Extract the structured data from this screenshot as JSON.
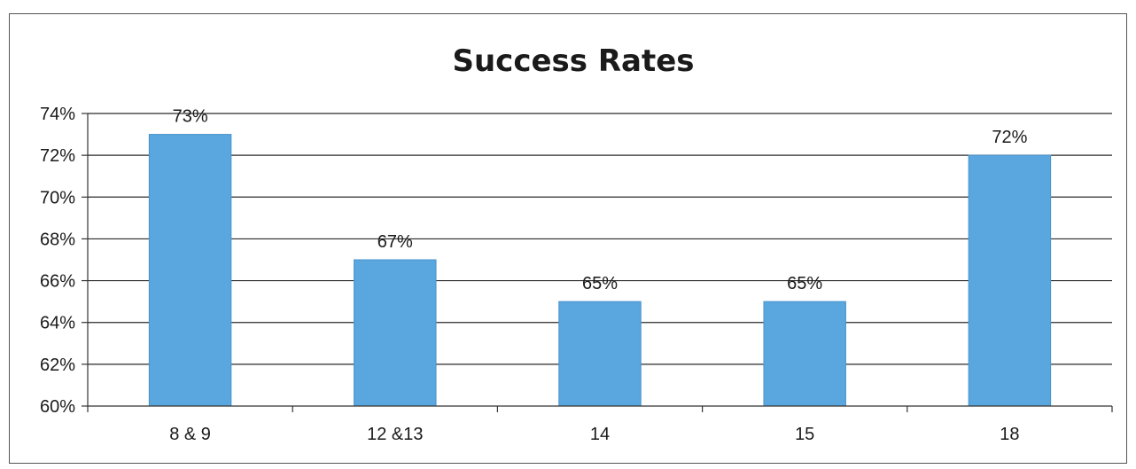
{
  "chart_data": {
    "type": "bar",
    "title": "Success Rates",
    "xlabel": "",
    "ylabel": "",
    "categories": [
      "8 & 9",
      "12 &13",
      "14",
      "15",
      "18"
    ],
    "values": [
      73,
      67,
      65,
      65,
      72
    ],
    "value_labels": [
      "73%",
      "67%",
      "65%",
      "65%",
      "72%"
    ],
    "ylim": [
      60,
      74
    ],
    "yticks": [
      60,
      62,
      64,
      66,
      68,
      70,
      72,
      74
    ],
    "ytick_labels": [
      "60%",
      "62%",
      "64%",
      "66%",
      "68%",
      "70%",
      "72%",
      "74%"
    ],
    "grid": true,
    "legend": "none",
    "bar_color": "#5aa6de"
  }
}
